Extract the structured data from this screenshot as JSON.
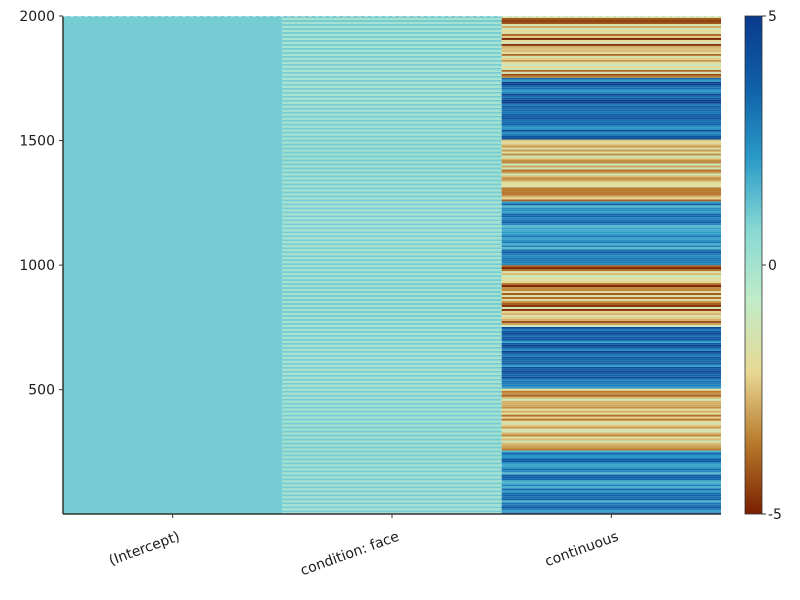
{
  "chart_data": {
    "type": "heatmap",
    "title": "",
    "xlabel": "",
    "ylabel": "",
    "x_categories": [
      "(Intercept)",
      "condition: face",
      "continuous"
    ],
    "ylim": [
      1,
      2000
    ],
    "yticks": [
      500,
      1000,
      1500,
      2000
    ],
    "colorbar": {
      "min": -5,
      "max": 5,
      "ticks": [
        -5,
        0,
        5
      ]
    },
    "colormap": [
      "#7a1f00",
      "#b87a2c",
      "#e8d894",
      "#c0ecc8",
      "#88d8d4",
      "#2a9ac8",
      "#1060a8",
      "#0a3a8c"
    ],
    "columns": [
      {
        "name": "(Intercept)",
        "pattern": "constant",
        "value": 1
      },
      {
        "name": "condition: face",
        "pattern": "alternating",
        "values": [
          0,
          1
        ]
      },
      {
        "name": "continuous",
        "pattern": "blocks",
        "blocks": [
          {
            "from": 1,
            "to": 250,
            "range": [
              1,
              4
            ]
          },
          {
            "from": 251,
            "to": 500,
            "range": [
              -4,
              -1
            ]
          },
          {
            "from": 501,
            "to": 750,
            "range": [
              2,
              5
            ]
          },
          {
            "from": 751,
            "to": 1000,
            "range": [
              -5,
              -1
            ]
          },
          {
            "from": 1001,
            "to": 1250,
            "range": [
              1,
              4
            ]
          },
          {
            "from": 1251,
            "to": 1500,
            "range": [
              -4,
              -1
            ]
          },
          {
            "from": 1501,
            "to": 1750,
            "range": [
              2,
              5
            ]
          },
          {
            "from": 1751,
            "to": 2000,
            "range": [
              -5,
              -1
            ]
          }
        ]
      }
    ]
  }
}
